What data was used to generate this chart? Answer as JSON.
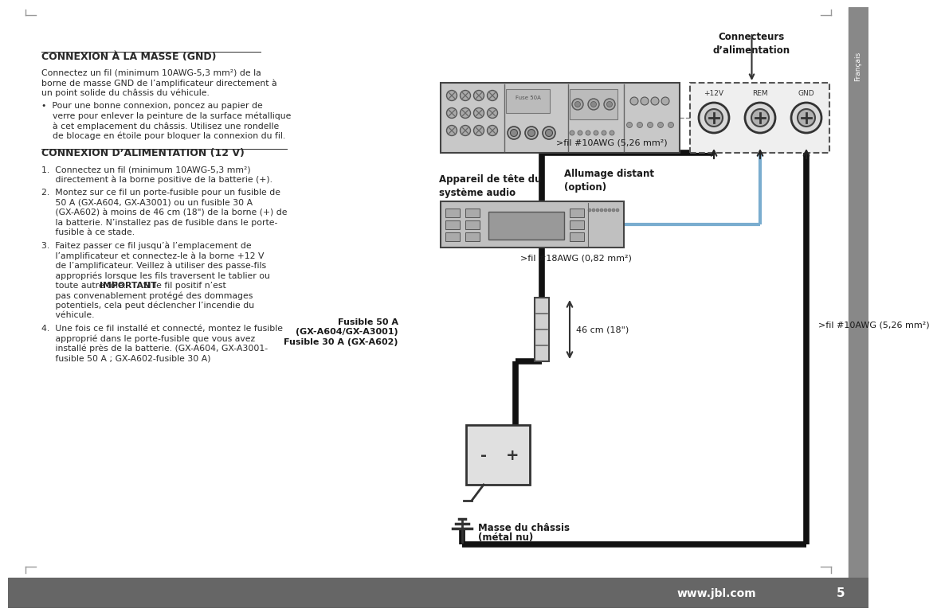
{
  "page_bg": "#ffffff",
  "sidebar_bg": "#888888",
  "footer_bg": "#666666",
  "body_text_color": "#2a2a2a",
  "title1": "CONNEXION À LA MASSE (GND)",
  "title2": "CONNEXION D’ALIMENTATION (12 V)",
  "para1_line1": "Connectez un fil (minimum 10AWG-5,3 mm²) de la",
  "para1_line2": "borne de masse GND de l’amplificateur directement à",
  "para1_line3": "un point solide du châssis du véhicule.",
  "bullet_line1": "•  Pour une bonne connexion, poncez au papier de",
  "bullet_line2": "    verre pour enlever la peinture de la surface métallique",
  "bullet_line3": "    à cet emplacement du châssis. Utilisez une rondelle",
  "bullet_line4": "    de blocage en étoile pour bloquer la connexion du fil.",
  "step1_a": "1.  Connectez un fil (minimum 10AWG-5,3 mm²)",
  "step1_b": "     directement à la borne positive de la batterie (+).",
  "step2_a": "2.  Montez sur ce fil un porte-fusible pour un fusible de",
  "step2_b": "     50 A (GX-A604, GX-A3001) ou un fusible 30 A",
  "step2_c": "     (GX-A602) à moins de 46 cm (18\") de la borne (+) de",
  "step2_d": "     la batterie. N’installez pas de fusible dans le porte-",
  "step2_e": "     fusible à ce stade.",
  "step3_a": "3.  Faitez passer ce fil jusqu’à l’emplacement de",
  "step3_b": "     l’amplificateur et connectez-le à la borne +12 V",
  "step3_c": "     de l’amplificateur. Veillez à utiliser des passe-fils",
  "step3_d": "     appropriés lorsque les fils traversent le tablier ou",
  "step3_e": "     toute autre tôle. ",
  "step3_f": "IMPORTANT",
  "step3_g": " : Si le fil positif n’est",
  "step3_h": "     pas convenablement protégé des dommages",
  "step3_i": "     potentiels, cela peut déclencher l’incendie du",
  "step3_j": "     véhicule.",
  "step4_a": "4.  Une fois ce fil installé et connecté, montez le fusible",
  "step4_b": "     approprié dans le porte-fusible que vous avez",
  "step4_c": "     installé près de la batterie. (GX-A604, GX-A3001-",
  "step4_d": "     fusible 50 A ; GX-A602-fusible 30 A)",
  "label_connecteurs": "Connecteurs\nd’alimentation",
  "label_appareil": "Appareil de tête du\nsystème audio",
  "label_allumage": "Allumage distant\n(option)",
  "label_fil18": ">fil #18AWG (0,82 mm²)",
  "label_fil10_1": ">fil #10AWG (5,26 mm²)",
  "label_fusible_line1": "Fusible 50 A",
  "label_fusible_line2": "(GX-A604/GX-A3001)",
  "label_fusible_line3": "Fusible 30 A (GX-A602)",
  "label_46cm": "46 cm (18\")",
  "label_fil10_2": ">fil #10AWG (5,26 mm²)",
  "label_masse_line1": "Masse du châssis",
  "label_masse_line2": "(métal nu)",
  "label_12v": "+12V",
  "label_rem": "REM",
  "label_gnd": "GND",
  "footer_url": "www.jbl.com",
  "page_num": "5",
  "sidebar_text": "Français"
}
